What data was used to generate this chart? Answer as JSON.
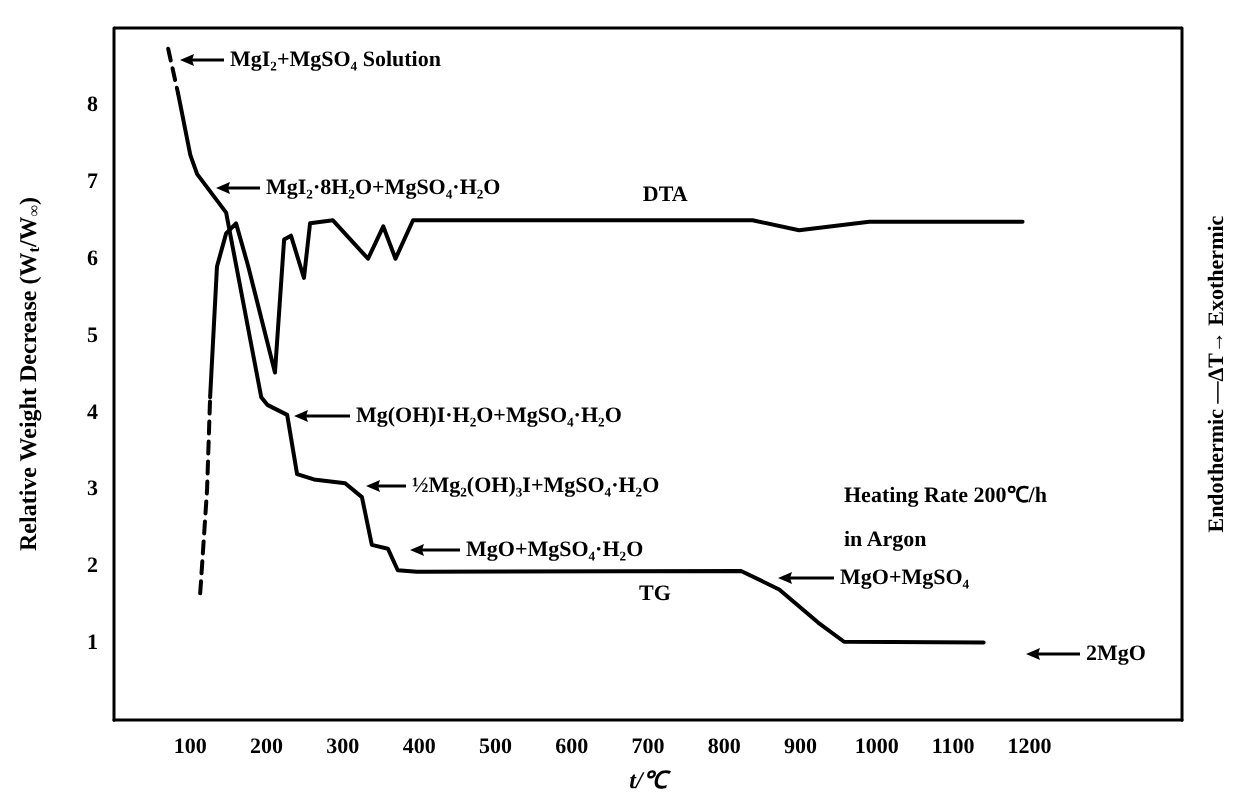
{
  "chart_data": {
    "type": "line",
    "xlabel": "t/℃",
    "ylabel": "Relative Weight Decrease (W$_{t}$/W$_{∞}$)",
    "y2label": "Endothermic —ΔT→ Exothermic",
    "xlim": [
      0,
      1400
    ],
    "xticks": [
      100,
      200,
      300,
      400,
      500,
      600,
      700,
      800,
      900,
      1000,
      1100,
      1200
    ],
    "ylim": [
      0,
      9
    ],
    "yticks": [
      1,
      2,
      3,
      4,
      5,
      6,
      7,
      8
    ],
    "grid": false,
    "legend": false,
    "marker": "none",
    "series": [
      {
        "color": "#000000",
        "line_style": "dashed",
        "x": [
          71,
          84
        ],
        "values": [
          8.73,
          8.15
        ]
      },
      {
        "name": "TG",
        "color": "#000000",
        "line_style": "solid",
        "x": [
          84,
          100,
          109,
          147,
          193,
          201,
          227,
          240,
          262,
          303,
          325,
          338,
          359,
          372,
          397,
          822,
          872,
          923,
          957,
          1140
        ],
        "values": [
          8.15,
          7.35,
          7.1,
          6.6,
          4.2,
          4.1,
          3.97,
          3.2,
          3.13,
          3.08,
          2.9,
          2.28,
          2.23,
          1.95,
          1.93,
          1.94,
          1.7,
          1.27,
          1.02,
          1.01
        ]
      },
      {
        "color": "#000000",
        "line_style": "dashed",
        "x": [
          113,
          122,
          126
        ],
        "values": [
          1.65,
          3.0,
          4.2
        ]
      },
      {
        "name": "DTA",
        "color": "#000000",
        "line_style": "solid",
        "x": [
          126,
          135,
          147,
          160,
          176,
          211,
          223,
          232,
          249,
          257,
          287,
          333,
          353,
          369,
          392,
          837,
          898,
          990,
          1191
        ],
        "values": [
          4.2,
          5.9,
          6.33,
          6.46,
          5.9,
          4.52,
          6.25,
          6.3,
          5.75,
          6.46,
          6.5,
          6.0,
          6.42,
          6.0,
          6.5,
          6.5,
          6.37,
          6.48,
          6.48
        ]
      }
    ],
    "annotations": [
      "MgI₂+MgSO₄ Solution",
      "MgI₂·8H₂O+MgSO₄·H₂O",
      "Mg(OH)I·H₂O+MgSO₄·H₂O",
      "½Mg₂(OH)₃I+MgSO₄·H₂O",
      "MgO+MgSO₄·H₂O",
      "MgO+MgSO₄",
      "2MgO",
      "Heating Rate 200℃/h",
      "in Argon"
    ]
  }
}
